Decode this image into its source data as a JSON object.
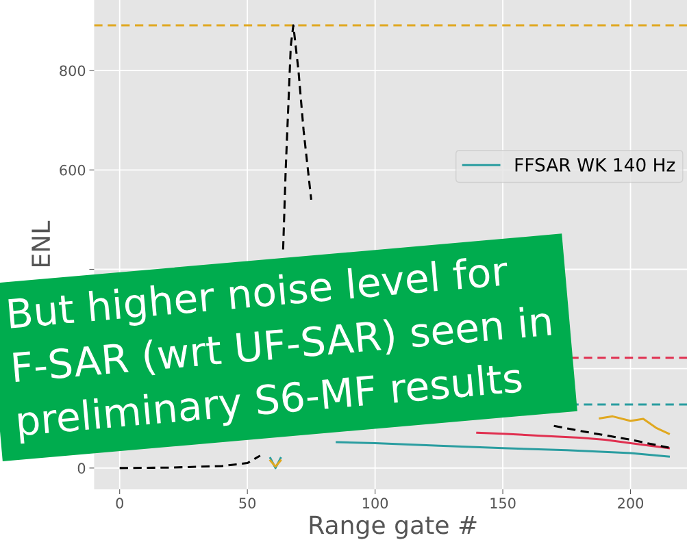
{
  "chart_data": {
    "type": "line",
    "xlabel": "Range gate #",
    "ylabel": "ENL",
    "xlim": [
      -10,
      224
    ],
    "xticks": [
      0,
      50,
      100,
      150,
      200
    ],
    "ylim": [
      -43,
      942
    ],
    "yticks": [
      0,
      {
        "value": 200,
        "label": null
      },
      {
        "value": 400,
        "label": null
      },
      600,
      800
    ],
    "grid": true,
    "legend": "right",
    "series": [
      {
        "name": "FFSAR WK 140 Hz",
        "color": "#2a9da0",
        "x": [
          59,
          61,
          63,
          70,
          85,
          100,
          125,
          150,
          175,
          200,
          215
        ],
        "values": [
          20,
          0,
          20,
          null,
          52,
          50,
          45,
          40,
          36,
          30,
          23
        ]
      },
      {
        "color": "#e03050",
        "x": [
          140,
          150,
          165,
          180,
          190,
          200,
          215
        ],
        "values": [
          71,
          69,
          65,
          61,
          57,
          50,
          40
        ]
      },
      {
        "color": "#e0a820",
        "x": [
          59,
          61,
          63,
          70,
          188,
          193,
          200,
          205,
          210,
          215
        ],
        "values": [
          15,
          3,
          15,
          null,
          100,
          104,
          95,
          99,
          81,
          69
        ]
      },
      {
        "color": "#000000",
        "line_style": "dashed",
        "x": [
          0,
          20,
          40,
          50,
          55,
          57,
          64,
          65,
          67,
          68,
          70,
          72,
          75,
          77,
          170,
          180,
          200,
          215
        ],
        "values": [
          0,
          1,
          4,
          10,
          25,
          null,
          440,
          600,
          850,
          891,
          800,
          680,
          540,
          null,
          85,
          75,
          57,
          41
        ]
      }
    ],
    "ref_lines": [
      {
        "axis": "y",
        "value": 891,
        "color": "#e0a820",
        "line_style": "dashed"
      },
      {
        "axis": "y",
        "value": 222,
        "color": "#e03050",
        "line_style": "dashed"
      },
      {
        "axis": "y",
        "value": 128,
        "color": "#2a9da0",
        "line_style": "dashed"
      }
    ],
    "annotations": [
      "But higher noise level for",
      "F-SAR (wrt UF-SAR) seen in",
      "preliminary S6-MF results"
    ]
  }
}
